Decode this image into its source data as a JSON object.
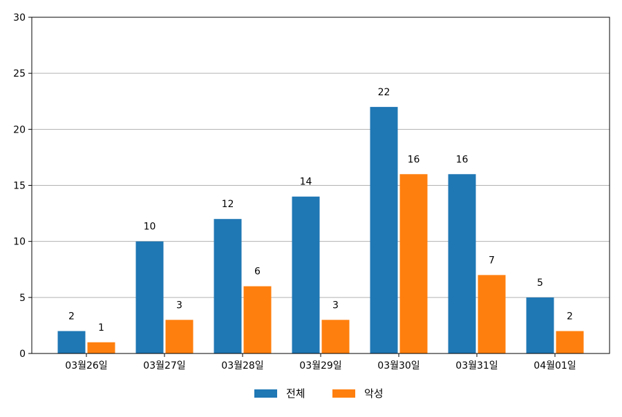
{
  "chart_data": {
    "type": "bar",
    "categories": [
      "03월26일",
      "03월27일",
      "03월28일",
      "03월29일",
      "03월30일",
      "03월31일",
      "04월01일"
    ],
    "series": [
      {
        "name": "전체",
        "values": [
          2,
          10,
          12,
          14,
          22,
          16,
          5
        ],
        "color": "#1f77b4"
      },
      {
        "name": "악성",
        "values": [
          1,
          3,
          6,
          3,
          16,
          7,
          2
        ],
        "color": "#ff7f0e"
      }
    ],
    "ylim": [
      0,
      30
    ],
    "yticks": [
      0,
      5,
      10,
      15,
      20,
      25,
      30
    ],
    "grid": "horizontal",
    "legend_position": "bottom-center",
    "data_labels": true
  }
}
